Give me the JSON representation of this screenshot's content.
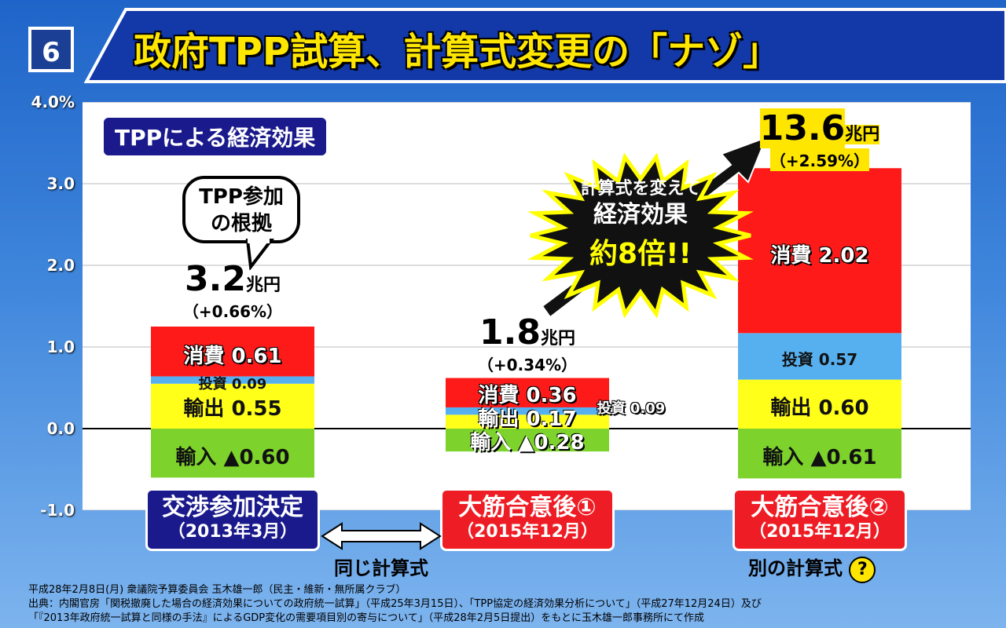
{
  "header": {
    "number": "6",
    "title": "政府TPP試算、計算式変更の「ナゾ」"
  },
  "legend_title": "TPPによる経済効果",
  "bubble": [
    "TPP参加",
    "の根拠"
  ],
  "burst": [
    "計算式を変えて",
    "経済効果",
    "約8倍!!"
  ],
  "same_formula_label": "同じ計算式",
  "different_formula_label": "別の計算式",
  "question_mark": "?",
  "colors": {
    "consumption": "#ff1a1a",
    "investment": "#56b0f0",
    "export": "#ffff1a",
    "import": "#7dd32b",
    "navy": "#1a1a8c",
    "red_label": "#ee1c24"
  },
  "chart_data": {
    "type": "bar",
    "stacked": true,
    "ylim": [
      -1.0,
      4.0
    ],
    "yticks": [
      "4.0%",
      "3.0",
      "2.0",
      "1.0",
      "0.0",
      "-1.0"
    ],
    "grid": true,
    "categories": [
      {
        "name": "交渉参加決定",
        "date": "（2013年3月）"
      },
      {
        "name": "大筋合意後①",
        "date": "（2015年12月）"
      },
      {
        "name": "大筋合意後②",
        "date": "（2015年12月）"
      }
    ],
    "totals": [
      {
        "amount": "3.2",
        "unit": "兆円",
        "pct": "（+0.66%）"
      },
      {
        "amount": "1.8",
        "unit": "兆円",
        "pct": "（+0.34%）"
      },
      {
        "amount": "13.6",
        "unit": "兆円",
        "pct": "（+2.59%）"
      }
    ],
    "series": [
      {
        "name": "消費",
        "values": [
          0.61,
          0.36,
          2.02
        ],
        "labels": [
          "消費 0.61",
          "消費 0.36",
          "消費 2.02"
        ]
      },
      {
        "name": "投資",
        "values": [
          0.09,
          0.09,
          0.57
        ],
        "labels": [
          "投資 0.09",
          "投資 0.09",
          "投資 0.57"
        ]
      },
      {
        "name": "輸出",
        "values": [
          0.55,
          0.17,
          0.6
        ],
        "labels": [
          "輸出 0.55",
          "輸出 0.17",
          "輸出 0.60"
        ]
      },
      {
        "name": "輸入",
        "values": [
          -0.6,
          -0.28,
          -0.61
        ],
        "labels": [
          "輸入 ▲0.60",
          "輸入 ▲0.28",
          "輸入 ▲0.61"
        ]
      }
    ]
  },
  "source": [
    "平成28年2月8日(月) 衆議院予算委員会 玉木雄一郎（民主・維新・無所属クラブ）",
    "出典：内閣官房「関税撤廃した場合の経済効果についての政府統一試算」（平成25年3月15日）、「TPP協定の経済効果分析について」（平成27年12月24日）及び",
    "「『2013年政府統一試算と同様の手法』によるGDP変化の需要項目別の寄与について」（平成28年2月5日提出）をもとに玉木雄一郎事務所にて作成"
  ]
}
